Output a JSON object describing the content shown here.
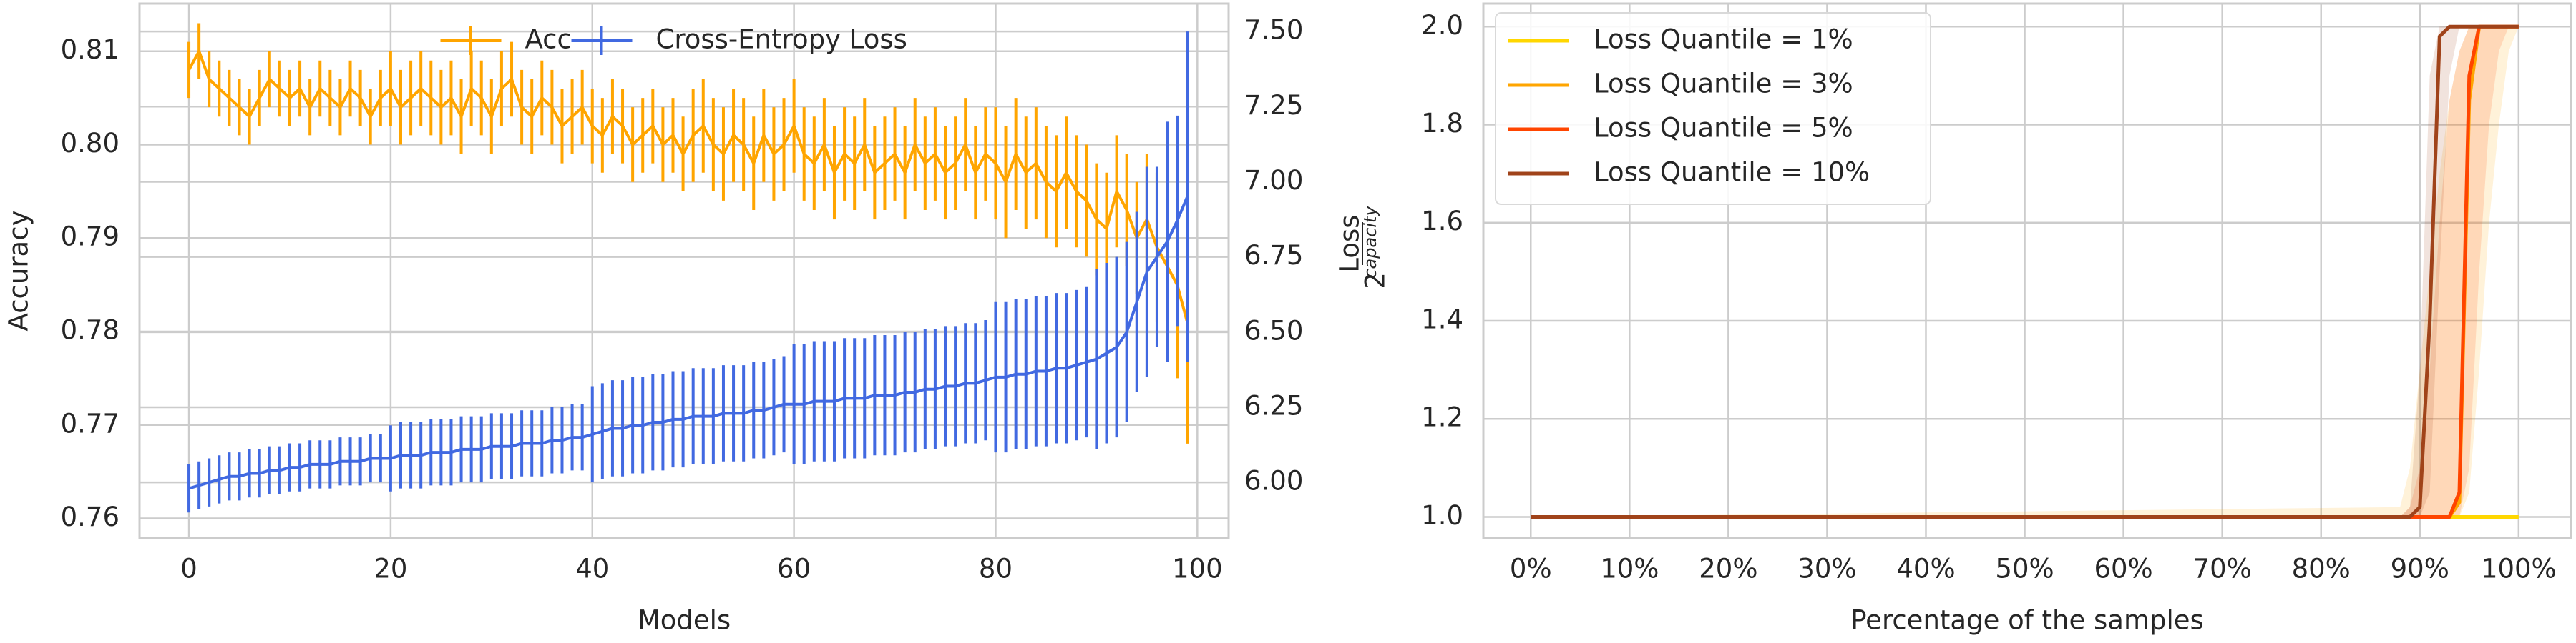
{
  "chart_data": [
    {
      "type": "errorbar",
      "xlabel": "Models",
      "ylabel": "Accuracy",
      "xlim": [
        -4.9,
        103.1
      ],
      "xticks": [
        0,
        20,
        40,
        60,
        80,
        100
      ],
      "ylim": [
        0.7579,
        0.8151
      ],
      "yticks": [
        0.76,
        0.77,
        0.78,
        0.79,
        {
          "value": 0.8,
          "label": "0.80"
        },
        0.81
      ],
      "y2lim": [
        5.815,
        7.593
      ],
      "y2ticks": [
        {
          "value": 6.0,
          "label": "6.00"
        },
        {
          "value": 6.25,
          "label": "6.25"
        },
        {
          "value": 6.5,
          "label": "6.50"
        },
        {
          "value": 6.75,
          "label": "6.75"
        },
        {
          "value": 7.0,
          "label": "7.00"
        },
        {
          "value": 7.25,
          "label": "7.25"
        },
        {
          "value": 7.5,
          "label": "7.50"
        }
      ],
      "grid": true,
      "legend": "upper center",
      "x": [
        0,
        1,
        2,
        3,
        4,
        5,
        6,
        7,
        8,
        9,
        10,
        11,
        12,
        13,
        14,
        15,
        16,
        17,
        18,
        19,
        20,
        21,
        22,
        23,
        24,
        25,
        26,
        27,
        28,
        29,
        30,
        31,
        32,
        33,
        34,
        35,
        36,
        37,
        38,
        39,
        40,
        41,
        42,
        43,
        44,
        45,
        46,
        47,
        48,
        49,
        50,
        51,
        52,
        53,
        54,
        55,
        56,
        57,
        58,
        59,
        60,
        61,
        62,
        63,
        64,
        65,
        66,
        67,
        68,
        69,
        70,
        71,
        72,
        73,
        74,
        75,
        76,
        77,
        78,
        79,
        80,
        81,
        82,
        83,
        84,
        85,
        86,
        87,
        88,
        89,
        90,
        91,
        92,
        93,
        94,
        95,
        96,
        97,
        98,
        99
      ],
      "series": [
        {
          "name": "Acc",
          "color": "#ffa500",
          "axis": "y",
          "values": [
            0.808,
            0.81,
            0.807,
            0.806,
            0.805,
            0.804,
            0.803,
            0.805,
            0.807,
            0.806,
            0.805,
            0.806,
            0.804,
            0.806,
            0.805,
            0.804,
            0.806,
            0.805,
            0.803,
            0.805,
            0.806,
            0.804,
            0.805,
            0.806,
            0.805,
            0.804,
            0.805,
            0.803,
            0.806,
            0.805,
            0.803,
            0.806,
            0.807,
            0.804,
            0.803,
            0.805,
            0.804,
            0.802,
            0.803,
            0.804,
            0.802,
            0.801,
            0.803,
            0.802,
            0.8,
            0.801,
            0.802,
            0.8,
            0.801,
            0.799,
            0.801,
            0.802,
            0.8,
            0.799,
            0.801,
            0.8,
            0.798,
            0.801,
            0.799,
            0.8,
            0.802,
            0.799,
            0.798,
            0.8,
            0.797,
            0.799,
            0.798,
            0.8,
            0.797,
            0.798,
            0.799,
            0.797,
            0.8,
            0.798,
            0.799,
            0.797,
            0.798,
            0.8,
            0.797,
            0.799,
            0.798,
            0.796,
            0.799,
            0.797,
            0.798,
            0.796,
            0.795,
            0.797,
            0.795,
            0.794,
            0.792,
            0.791,
            0.795,
            0.793,
            0.79,
            0.792,
            0.789,
            0.787,
            0.785,
            0.781
          ],
          "errors": [
            0.003,
            0.003,
            0.003,
            0.003,
            0.003,
            0.003,
            0.003,
            0.003,
            0.003,
            0.003,
            0.003,
            0.003,
            0.003,
            0.003,
            0.003,
            0.003,
            0.003,
            0.003,
            0.003,
            0.003,
            0.004,
            0.004,
            0.004,
            0.004,
            0.004,
            0.004,
            0.004,
            0.004,
            0.004,
            0.004,
            0.004,
            0.004,
            0.004,
            0.004,
            0.004,
            0.004,
            0.004,
            0.004,
            0.004,
            0.004,
            0.004,
            0.004,
            0.004,
            0.004,
            0.004,
            0.004,
            0.004,
            0.004,
            0.004,
            0.004,
            0.005,
            0.005,
            0.005,
            0.005,
            0.005,
            0.005,
            0.005,
            0.005,
            0.005,
            0.005,
            0.005,
            0.005,
            0.005,
            0.005,
            0.005,
            0.005,
            0.005,
            0.005,
            0.005,
            0.005,
            0.005,
            0.005,
            0.005,
            0.005,
            0.005,
            0.005,
            0.005,
            0.005,
            0.005,
            0.005,
            0.006,
            0.006,
            0.006,
            0.006,
            0.006,
            0.006,
            0.006,
            0.006,
            0.006,
            0.006,
            0.006,
            0.006,
            0.006,
            0.006,
            0.006,
            0.007,
            0.008,
            0.009,
            0.01,
            0.013
          ]
        },
        {
          "name": "Cross-Entropy Loss",
          "color": "#4169e1",
          "axis": "y2",
          "values": [
            5.98,
            5.99,
            6.0,
            6.01,
            6.02,
            6.02,
            6.03,
            6.03,
            6.04,
            6.04,
            6.05,
            6.05,
            6.06,
            6.06,
            6.06,
            6.07,
            6.07,
            6.07,
            6.08,
            6.08,
            6.08,
            6.09,
            6.09,
            6.09,
            6.1,
            6.1,
            6.1,
            6.11,
            6.11,
            6.11,
            6.12,
            6.12,
            6.12,
            6.13,
            6.13,
            6.13,
            6.14,
            6.14,
            6.15,
            6.15,
            6.16,
            6.17,
            6.18,
            6.18,
            6.19,
            6.19,
            6.2,
            6.2,
            6.21,
            6.21,
            6.22,
            6.22,
            6.22,
            6.23,
            6.23,
            6.23,
            6.24,
            6.24,
            6.25,
            6.26,
            6.26,
            6.26,
            6.27,
            6.27,
            6.27,
            6.28,
            6.28,
            6.28,
            6.29,
            6.29,
            6.29,
            6.3,
            6.3,
            6.31,
            6.31,
            6.32,
            6.32,
            6.33,
            6.33,
            6.34,
            6.35,
            6.35,
            6.36,
            6.36,
            6.37,
            6.37,
            6.38,
            6.38,
            6.39,
            6.4,
            6.41,
            6.43,
            6.45,
            6.5,
            6.6,
            6.7,
            6.75,
            6.8,
            6.87,
            6.95
          ],
          "errors": [
            0.08,
            0.08,
            0.08,
            0.08,
            0.08,
            0.08,
            0.08,
            0.08,
            0.08,
            0.08,
            0.08,
            0.08,
            0.08,
            0.08,
            0.08,
            0.08,
            0.08,
            0.08,
            0.08,
            0.08,
            0.11,
            0.11,
            0.11,
            0.11,
            0.11,
            0.11,
            0.11,
            0.11,
            0.11,
            0.11,
            0.11,
            0.11,
            0.11,
            0.11,
            0.11,
            0.11,
            0.11,
            0.11,
            0.11,
            0.11,
            0.16,
            0.16,
            0.16,
            0.16,
            0.16,
            0.16,
            0.16,
            0.16,
            0.16,
            0.16,
            0.16,
            0.16,
            0.16,
            0.16,
            0.16,
            0.16,
            0.16,
            0.16,
            0.16,
            0.16,
            0.2,
            0.2,
            0.2,
            0.2,
            0.2,
            0.2,
            0.2,
            0.2,
            0.2,
            0.2,
            0.2,
            0.2,
            0.2,
            0.2,
            0.2,
            0.2,
            0.2,
            0.2,
            0.2,
            0.2,
            0.25,
            0.25,
            0.25,
            0.25,
            0.25,
            0.25,
            0.25,
            0.25,
            0.25,
            0.25,
            0.3,
            0.3,
            0.3,
            0.3,
            0.3,
            0.35,
            0.3,
            0.4,
            0.35,
            0.55
          ]
        }
      ]
    },
    {
      "type": "line",
      "xlabel": "Percentage of the samples",
      "ylabel": {
        "base": "2",
        "exponent_top": "Loss",
        "exponent_bottom": "capacity"
      },
      "xlim": [
        -4.8,
        105.3
      ],
      "xticks": [
        {
          "value": 0,
          "label": "0%"
        },
        {
          "value": 10,
          "label": "10%"
        },
        {
          "value": 20,
          "label": "20%"
        },
        {
          "value": 30,
          "label": "30%"
        },
        {
          "value": 40,
          "label": "40%"
        },
        {
          "value": 50,
          "label": "50%"
        },
        {
          "value": 60,
          "label": "60%"
        },
        {
          "value": 70,
          "label": "70%"
        },
        {
          "value": 80,
          "label": "80%"
        },
        {
          "value": 90,
          "label": "90%"
        },
        {
          "value": 100,
          "label": "100%"
        }
      ],
      "ylim": [
        0.957,
        2.047
      ],
      "yticks": [
        {
          "value": 1.0,
          "label": "1.0"
        },
        {
          "value": 1.2,
          "label": "1.2"
        },
        {
          "value": 1.4,
          "label": "1.4"
        },
        {
          "value": 1.6,
          "label": "1.6"
        },
        {
          "value": 1.8,
          "label": "1.8"
        },
        {
          "value": 2.0,
          "label": "2.0"
        }
      ],
      "grid": true,
      "legend": "upper left",
      "x": [
        0,
        88,
        89,
        90,
        91,
        92,
        93,
        94,
        95,
        96,
        97,
        98,
        99,
        100
      ],
      "series": [
        {
          "name": "Loss Quantile = 1%",
          "color": "#ffd700",
          "values": [
            1,
            1,
            1,
            1,
            1,
            1,
            1,
            1,
            1,
            1,
            1,
            1,
            1,
            1
          ]
        },
        {
          "name": "Loss Quantile = 3%",
          "color": "#ffa500",
          "values": [
            1,
            1,
            1,
            1,
            1,
            1,
            1,
            1.03,
            1.85,
            2,
            2,
            2,
            2,
            2
          ],
          "lower": [
            1,
            1,
            1,
            1,
            1,
            1,
            1,
            1,
            1.05,
            1.3,
            1.6,
            1.8,
            1.95,
            2
          ],
          "upper": [
            1,
            1.02,
            1.1,
            1.3,
            1.5,
            1.7,
            1.85,
            1.95,
            2,
            2,
            2,
            2,
            2,
            2
          ]
        },
        {
          "name": "Loss Quantile = 5%",
          "color": "#ff4500",
          "values": [
            1,
            1,
            1,
            1,
            1,
            1,
            1,
            1.05,
            1.9,
            2,
            2,
            2,
            2,
            2
          ],
          "lower": [
            1,
            1,
            1,
            1,
            1,
            1,
            1,
            1,
            1.1,
            1.5,
            1.8,
            1.95,
            2,
            2
          ],
          "upper": [
            1,
            1,
            1.02,
            1.1,
            1.3,
            1.6,
            1.85,
            1.95,
            2,
            2,
            2,
            2,
            2,
            2
          ]
        },
        {
          "name": "Loss Quantile = 10%",
          "color": "#a0431a",
          "values": [
            1,
            1,
            1,
            1.02,
            1.4,
            1.98,
            2,
            2,
            2,
            2,
            2,
            2,
            2,
            2
          ],
          "lower": [
            1,
            1,
            1,
            1,
            1.05,
            1.5,
            1.9,
            2,
            2,
            2,
            2,
            2,
            2,
            2
          ],
          "upper": [
            1,
            1,
            1.02,
            1.3,
            1.9,
            2,
            2,
            2,
            2,
            2,
            2,
            2,
            2,
            2
          ]
        }
      ]
    }
  ]
}
